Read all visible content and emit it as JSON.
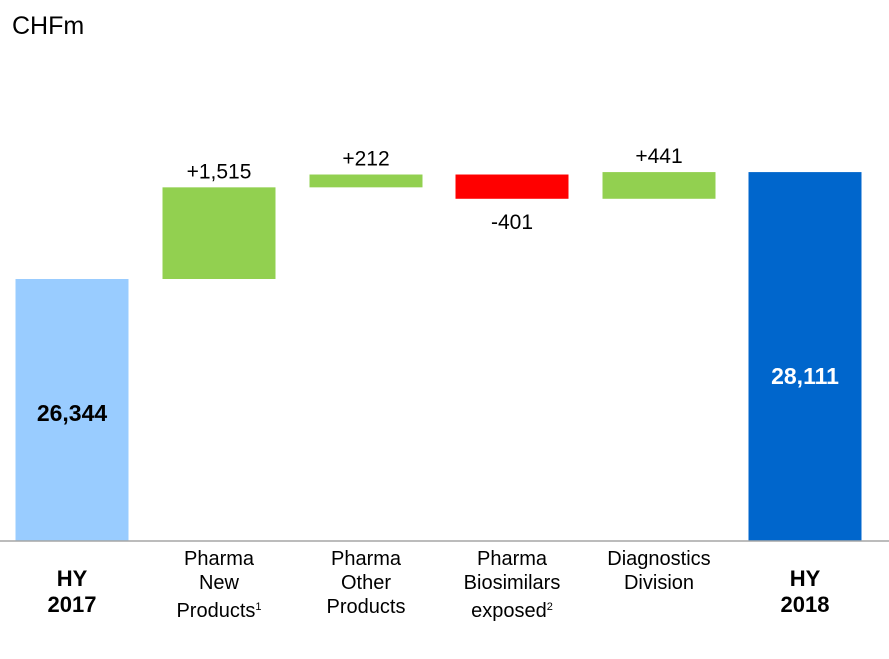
{
  "chart_data": {
    "type": "bar",
    "unit_label": "CHFm",
    "categories": [
      {
        "key": "hy2017",
        "line1": "HY",
        "line2": "2017",
        "line3": "",
        "sup": "",
        "bold": true
      },
      {
        "key": "pharma_new",
        "line1": "Pharma",
        "line2": "New",
        "line3": "Products",
        "sup": "1",
        "bold": false
      },
      {
        "key": "pharma_other",
        "line1": "Pharma",
        "line2": "Other",
        "line3": "Products",
        "sup": "",
        "bold": false
      },
      {
        "key": "pharma_biosim",
        "line1": "Pharma",
        "line2": "Biosimilars",
        "line3": "exposed",
        "sup": "2",
        "bold": false
      },
      {
        "key": "diagnostics",
        "line1": "Diagnostics",
        "line2": "Division",
        "line3": "",
        "sup": "",
        "bold": false
      },
      {
        "key": "hy2018",
        "line1": "HY",
        "line2": "2018",
        "line3": "",
        "sup": "",
        "bold": true
      }
    ],
    "bars": [
      {
        "kind": "total",
        "value": 26344,
        "label": "26,344",
        "color": "#99ccff",
        "label_color": "#000000"
      },
      {
        "kind": "delta",
        "value": 1515,
        "label": "+1,515",
        "color": "#92d050"
      },
      {
        "kind": "delta",
        "value": 212,
        "label": "+212",
        "color": "#92d050"
      },
      {
        "kind": "delta",
        "value": -401,
        "label": "-401",
        "color": "#ff0000"
      },
      {
        "kind": "delta",
        "value": 441,
        "label": "+441",
        "color": "#92d050"
      },
      {
        "kind": "total",
        "value": 28111,
        "label": "28,111",
        "color": "#0066cc",
        "label_color": "#ffffff"
      }
    ],
    "colors": {
      "increase": "#92d050",
      "decrease": "#ff0000",
      "start_total": "#99ccff",
      "end_total": "#0066cc"
    }
  }
}
